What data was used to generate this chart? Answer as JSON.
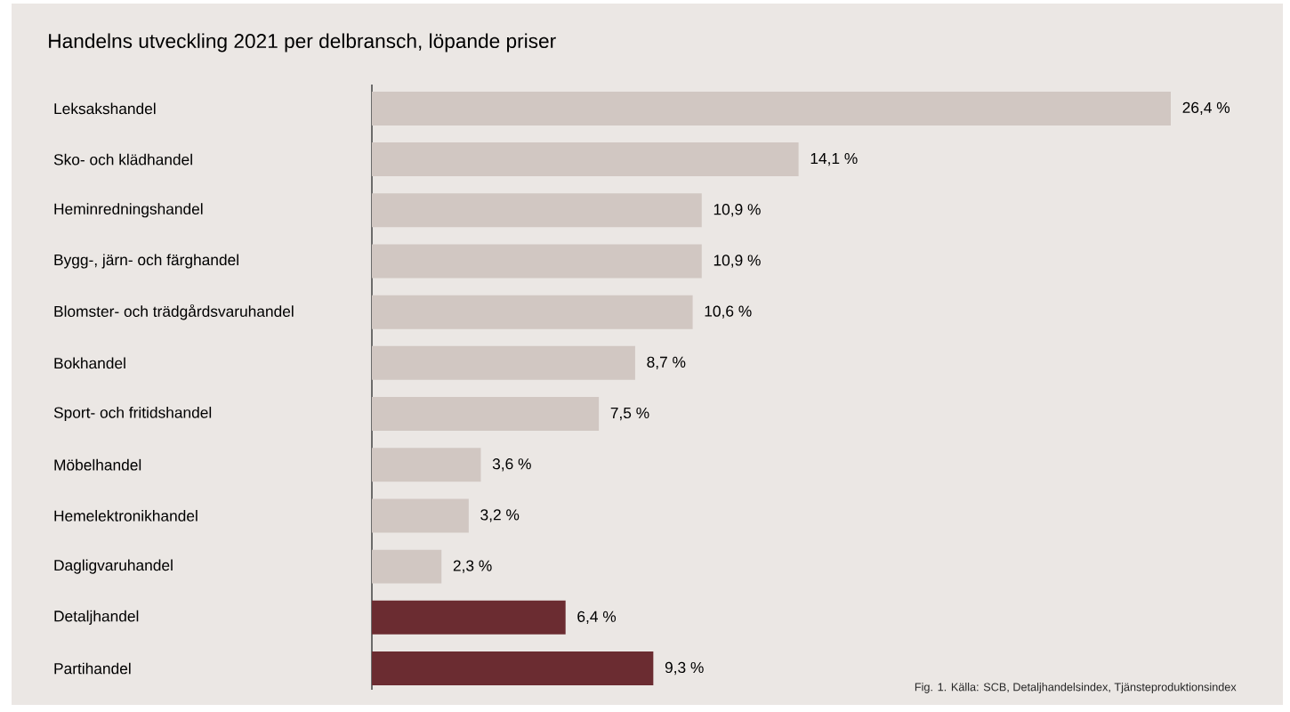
{
  "chart_data": {
    "type": "bar",
    "orientation": "horizontal",
    "title": "Handelns utveckling 2021 per delbransch, löpande priser",
    "categories": [
      "Leksakshandel",
      "Sko- och klädhandel",
      "Heminredningshandel",
      "Bygg-, järn- och färghandel",
      "Blomster- och trädgårdsvaruhandel",
      "Bokhandel",
      "Sport- och fritidshandel",
      "Möbelhandel",
      "Hemelektronikhandel",
      "Dagligvaruhandel",
      "Detaljhandel",
      "Partihandel"
    ],
    "values": [
      26.4,
      14.1,
      10.9,
      10.9,
      10.6,
      8.7,
      7.5,
      3.6,
      3.2,
      2.3,
      6.4,
      9.3
    ],
    "colors": [
      "#d1c7c2",
      "#d1c7c2",
      "#d1c7c2",
      "#d1c7c2",
      "#d1c7c2",
      "#d1c7c2",
      "#d1c7c2",
      "#d1c7c2",
      "#d1c7c2",
      "#d1c7c2",
      "#6b2c31",
      "#6b2c31"
    ],
    "value_labels": [
      "26,4 %",
      "14,1 %",
      "10,9 %",
      "10,9 %",
      "10,6 %",
      "8,7 %",
      "7,5 %",
      "3,6 %",
      "3,2 %",
      "2,3 %",
      "6,4 %",
      "9,3 %"
    ],
    "annotations": [
      "Fig. 1. Källa: SCB, Detaljhandelsindex, Tjänsteproduktionsindex"
    ]
  }
}
